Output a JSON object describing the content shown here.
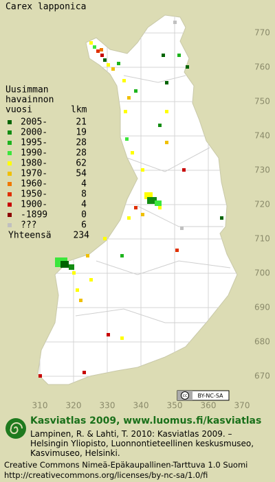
{
  "header": {
    "title": "Carex lapponica"
  },
  "legend": {
    "heading": [
      "Uusimman",
      "havainnon",
      "vuosi"
    ],
    "count_heading": "lkm",
    "rows": [
      {
        "label": "2005-",
        "count": "21",
        "color": "#006400"
      },
      {
        "label": "2000-",
        "count": "19",
        "color": "#128c12"
      },
      {
        "label": "1995-",
        "count": "28",
        "color": "#1eb41e"
      },
      {
        "label": "1990-",
        "count": "28",
        "color": "#3ce63c"
      },
      {
        "label": "1980-",
        "count": "62",
        "color": "#ffff00"
      },
      {
        "label": "1970-",
        "count": "54",
        "color": "#f0c000"
      },
      {
        "label": "1960-",
        "count": "4",
        "color": "#f07800"
      },
      {
        "label": "1950-",
        "count": "8",
        "color": "#e03000"
      },
      {
        "label": "1900-",
        "count": "4",
        "color": "#c80000"
      },
      {
        "label": "-1899",
        "count": "0",
        "color": "#8c0000"
      },
      {
        "label": "???",
        "count": "6",
        "color": "#c0c0c0"
      }
    ],
    "total_label": "Yhteensä",
    "total": "234"
  },
  "grid": {
    "north": [
      "770",
      "760",
      "750",
      "740",
      "730",
      "720",
      "710",
      "700",
      "690",
      "680",
      "670"
    ],
    "east": [
      "310",
      "320",
      "330",
      "340",
      "350",
      "360",
      "370"
    ]
  },
  "badge": "BY-NC-SA",
  "footer": {
    "title": "Kasviatlas 2009, www.luomus.fi/kasviatlas",
    "citation": [
      "Lampinen, R. & Lahti, T. 2010: Kasviatlas 2009. –",
      "Helsingin Yliopisto, Luonnontieteellinen keskusmuseo,",
      "Kasvimuseo, Helsinki."
    ],
    "license": [
      "Creative Commons Nimeä-Epäkaupallinen-Tarttuva 1.0 Suomi",
      "http://creativecommons.org/licenses/by-nc-sa/1.0/fi"
    ]
  }
}
